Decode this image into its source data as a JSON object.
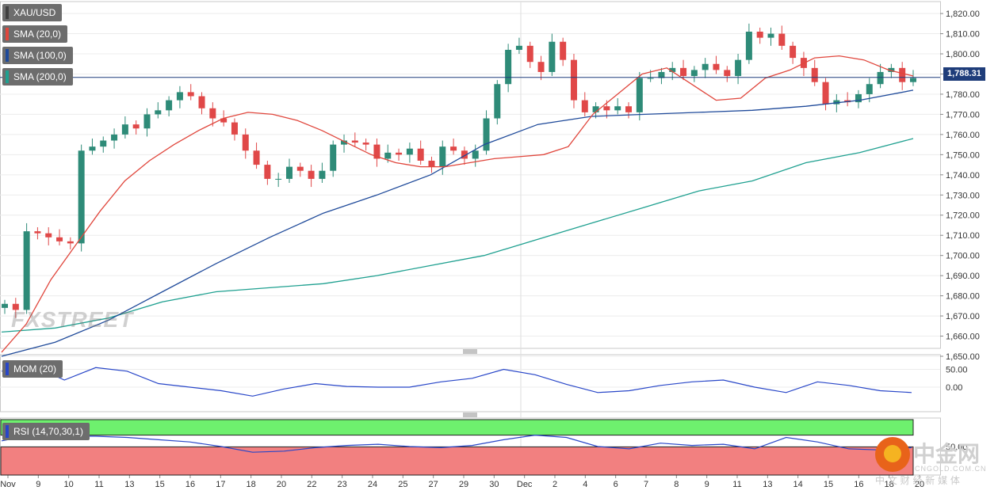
{
  "instrument": "XAU/USD",
  "indicators": {
    "sma20": "SMA (20,0)",
    "sma100": "SMA (100,0)",
    "sma200": "SMA (200,0)",
    "mom": "MOM (20)",
    "rsi": "RSI (14,70,30,1)"
  },
  "current_price": "1,788.31",
  "watermark": "FXSTREET",
  "corner_logo": {
    "name": "中金网",
    "url": "CNGOLD.COM.CN",
    "slogan": "中 文 财 经 新 媒 体"
  },
  "colors": {
    "bull": "#2e8b78",
    "bear": "#e04848",
    "sma20": "#e0463c",
    "sma100": "#1f4a9a",
    "sma200": "#1fa090",
    "mom": "#2846c8",
    "rsi_ob": "#6ef06e",
    "rsi_os": "#f28080"
  },
  "chart_data": {
    "type": "candlestick",
    "x_ticks": [
      "Nov",
      "9",
      "10",
      "11",
      "13",
      "15",
      "16",
      "17",
      "18",
      "20",
      "22",
      "23",
      "24",
      "25",
      "27",
      "29",
      "30",
      "Dec",
      "2",
      "4",
      "6",
      "7",
      "8",
      "9",
      "11",
      "13",
      "14",
      "15",
      "16",
      "18",
      "20"
    ],
    "price_axis": {
      "ticks": [
        "1,820.00",
        "1,810.00",
        "1,800.00",
        "1,790.00",
        "1,780.00",
        "1,770.00",
        "1,760.00",
        "1,750.00",
        "1,740.00",
        "1,730.00",
        "1,720.00",
        "1,710.00",
        "1,700.00",
        "1,690.00",
        "1,680.00",
        "1,670.00",
        "1,660.00",
        "1,650.00"
      ],
      "range": [
        1650,
        1822
      ]
    },
    "mom_axis": {
      "ticks": [
        "50.00",
        "0.00"
      ]
    },
    "rsi_axis": {
      "ticks": [
        "50.00"
      ],
      "overbought": 70,
      "oversold": 30
    },
    "last_price": 1788.31,
    "closes": [
      1676,
      1673,
      1712,
      1711,
      1709,
      1707,
      1706,
      1752,
      1754,
      1757,
      1760,
      1765,
      1763,
      1770,
      1772,
      1777,
      1781,
      1779,
      1773,
      1768,
      1766,
      1760,
      1752,
      1745,
      1738,
      1738,
      1744,
      1742,
      1738,
      1742,
      1755,
      1757,
      1756,
      1755,
      1748,
      1751,
      1750,
      1753,
      1747,
      1744,
      1754,
      1752,
      1748,
      1752,
      1768,
      1785,
      1802,
      1804,
      1796,
      1791,
      1806,
      1797,
      1777,
      1771,
      1774,
      1772,
      1774,
      1771,
      1788,
      1788,
      1791,
      1793,
      1789,
      1792,
      1795,
      1792,
      1789,
      1797,
      1811,
      1808,
      1810,
      1804,
      1798,
      1793,
      1786,
      1775,
      1777,
      1776,
      1780,
      1785,
      1791,
      1793,
      1786,
      1788
    ],
    "sma20": [
      1652,
      1666,
      1688,
      1705,
      1722,
      1737,
      1747,
      1755,
      1762,
      1768,
      1771,
      1770,
      1767,
      1762,
      1756,
      1750,
      1746,
      1744,
      1744,
      1746,
      1748,
      1749,
      1750,
      1754,
      1770,
      1780,
      1790,
      1793,
      1785,
      1777,
      1778,
      1788,
      1792,
      1798,
      1799,
      1797,
      1792,
      1789
    ],
    "sma100": [
      1650,
      1657,
      1668,
      1682,
      1696,
      1709,
      1721,
      1730,
      1740,
      1755,
      1765,
      1769,
      1770,
      1771,
      1772,
      1774,
      1777,
      1782
    ],
    "sma200": [
      1662,
      1664,
      1669,
      1677,
      1682,
      1684,
      1686,
      1690,
      1695,
      1700,
      1708,
      1716,
      1724,
      1732,
      1737,
      1746,
      1751,
      1758
    ],
    "mom": [
      45,
      60,
      20,
      55,
      45,
      10,
      0,
      -10,
      -25,
      -5,
      10,
      2,
      0,
      0,
      15,
      25,
      50,
      35,
      8,
      -15,
      -10,
      5,
      15,
      20,
      0,
      -15,
      15,
      5,
      -10,
      -15
    ],
    "rsi": [
      60,
      70,
      68,
      68,
      66,
      62,
      58,
      50,
      40,
      42,
      48,
      52,
      54,
      50,
      48,
      52,
      62,
      70,
      66,
      50,
      46,
      56,
      52,
      54,
      46,
      66,
      58,
      46,
      44,
      48
    ]
  }
}
